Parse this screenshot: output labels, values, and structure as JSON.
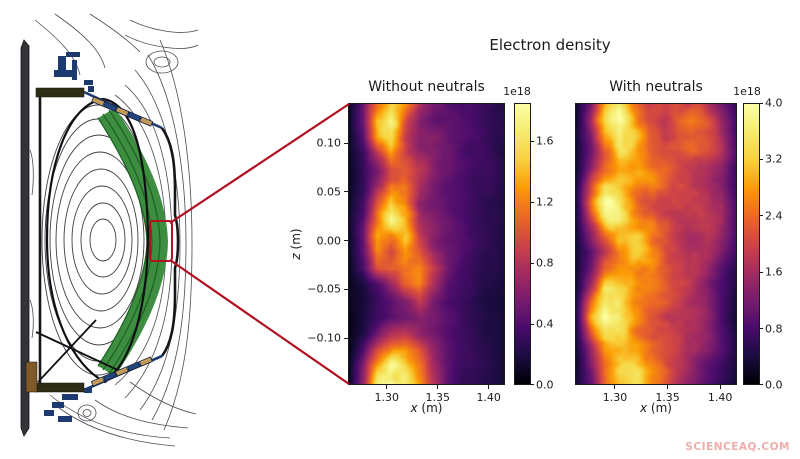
{
  "figure": {
    "title": "Electron density"
  },
  "watermark": {
    "text": "SCIENCEAQ.COM",
    "color": "#eeadad"
  },
  "diagram": {
    "colors": {
      "flux_contours": "#4a4a52",
      "vessel_wall": "#15151a",
      "coils_blue": "#1c3a6e",
      "tiles_tan": "#c49a5a",
      "edge_band_green": "#3e8e41",
      "band_stripe_green": "#1f6322",
      "highlight_red": "#b01020",
      "olive_component": "#2e2e14",
      "brown_component": "#7d5a28"
    }
  },
  "chart_data": [
    {
      "type": "heatmap",
      "title": "Without neutrals",
      "xlabel": "x (m)",
      "xlabel_var": "x",
      "xlabel_unit": " (m)",
      "ylabel": "z (m)",
      "ylabel_var": "z",
      "ylabel_unit": " (m)",
      "xlim": [
        1.262,
        1.416
      ],
      "ylim": [
        -0.148,
        0.141
      ],
      "xticks": {
        "values": [
          1.3,
          1.35,
          1.4
        ],
        "labels": [
          "1.30",
          "1.35",
          "1.40"
        ]
      },
      "yticks": {
        "values": [
          0.1,
          0.05,
          0.0,
          -0.05,
          -0.1
        ],
        "labels": [
          "0.10",
          "0.05",
          "0.00",
          "−0.05",
          "−0.10"
        ]
      },
      "colormap": "inferno",
      "colorbar": {
        "scale_label": "1e18",
        "vmin": 0.0,
        "vmax": 1.85,
        "ticks": {
          "values": [
            1.6,
            1.2,
            0.8,
            0.4,
            0.0
          ],
          "labels": [
            "1.6",
            "1.2",
            "0.8",
            "0.4",
            "0.0"
          ]
        }
      },
      "grid_rows": 18,
      "grid_cols": 12,
      "values": [
        [
          0.1,
          0.5,
          1.3,
          1.5,
          1.1,
          0.7,
          0.5,
          0.45,
          0.4,
          0.35,
          0.3,
          0.25
        ],
        [
          0.1,
          0.5,
          1.4,
          1.6,
          1.0,
          0.6,
          0.5,
          0.5,
          0.45,
          0.4,
          0.3,
          0.25
        ],
        [
          0.1,
          0.4,
          1.2,
          1.5,
          0.9,
          0.6,
          0.6,
          0.55,
          0.5,
          0.4,
          0.3,
          0.25
        ],
        [
          0.1,
          0.3,
          0.8,
          1.2,
          0.9,
          0.7,
          0.6,
          0.5,
          0.4,
          0.35,
          0.3,
          0.2
        ],
        [
          0.1,
          0.3,
          0.6,
          1.0,
          1.0,
          0.8,
          0.6,
          0.45,
          0.35,
          0.3,
          0.3,
          0.2
        ],
        [
          0.1,
          0.3,
          0.7,
          1.2,
          1.1,
          0.7,
          0.5,
          0.4,
          0.35,
          0.3,
          0.3,
          0.2
        ],
        [
          0.1,
          0.35,
          0.9,
          1.4,
          1.1,
          0.6,
          0.5,
          0.45,
          0.4,
          0.3,
          0.25,
          0.2
        ],
        [
          0.15,
          0.4,
          1.1,
          1.7,
          1.3,
          0.8,
          0.6,
          0.5,
          0.4,
          0.3,
          0.25,
          0.2
        ],
        [
          0.15,
          0.5,
          1.4,
          1.2,
          1.5,
          1.0,
          0.7,
          0.5,
          0.4,
          0.3,
          0.25,
          0.2
        ],
        [
          0.15,
          0.5,
          1.3,
          0.9,
          1.4,
          1.1,
          0.7,
          0.5,
          0.4,
          0.3,
          0.25,
          0.2
        ],
        [
          0.1,
          0.4,
          1.0,
          1.2,
          1.2,
          1.2,
          0.8,
          0.5,
          0.35,
          0.3,
          0.25,
          0.2
        ],
        [
          0.1,
          0.2,
          0.4,
          0.7,
          1.0,
          1.1,
          0.7,
          0.4,
          0.3,
          0.3,
          0.25,
          0.2
        ],
        [
          0.1,
          0.15,
          0.3,
          0.4,
          0.6,
          0.8,
          0.5,
          0.35,
          0.3,
          0.25,
          0.2,
          0.15
        ],
        [
          0.05,
          0.15,
          0.3,
          0.4,
          0.5,
          0.6,
          0.5,
          0.4,
          0.3,
          0.25,
          0.2,
          0.15
        ],
        [
          0.05,
          0.2,
          0.5,
          0.8,
          0.8,
          0.6,
          0.5,
          0.4,
          0.3,
          0.25,
          0.2,
          0.15
        ],
        [
          0.05,
          0.4,
          1.0,
          1.3,
          1.2,
          0.9,
          0.6,
          0.4,
          0.3,
          0.25,
          0.2,
          0.15
        ],
        [
          0.1,
          0.6,
          1.4,
          1.7,
          1.5,
          1.1,
          0.7,
          0.45,
          0.3,
          0.25,
          0.2,
          0.15
        ],
        [
          0.1,
          0.7,
          1.6,
          1.8,
          1.6,
          1.2,
          0.8,
          0.5,
          0.3,
          0.25,
          0.2,
          0.15
        ]
      ]
    },
    {
      "type": "heatmap",
      "title": "With neutrals",
      "xlabel": "x (m)",
      "xlabel_var": "x",
      "xlabel_unit": " (m)",
      "xlim": [
        1.262,
        1.416
      ],
      "ylim": [
        -0.148,
        0.141
      ],
      "xticks": {
        "values": [
          1.3,
          1.35,
          1.4
        ],
        "labels": [
          "1.30",
          "1.35",
          "1.40"
        ]
      },
      "colormap": "inferno",
      "colorbar": {
        "scale_label": "1e18",
        "vmin": 0.0,
        "vmax": 4.0,
        "ticks": {
          "values": [
            4.0,
            3.2,
            2.4,
            1.6,
            0.8,
            0.0
          ],
          "labels": [
            "4.0",
            "3.2",
            "2.4",
            "1.6",
            "0.8",
            "0.0"
          ]
        }
      },
      "grid_rows": 18,
      "grid_cols": 12,
      "values": [
        [
          0.3,
          1.2,
          2.8,
          3.2,
          2.5,
          2.0,
          2.2,
          2.4,
          2.2,
          1.8,
          1.2,
          0.6
        ],
        [
          0.3,
          1.5,
          3.4,
          3.9,
          3.0,
          2.2,
          2.0,
          2.4,
          2.6,
          2.2,
          1.4,
          0.7
        ],
        [
          0.3,
          1.4,
          3.2,
          4.0,
          3.4,
          2.4,
          2.0,
          2.2,
          2.4,
          2.2,
          1.6,
          0.8
        ],
        [
          0.3,
          1.2,
          2.6,
          3.6,
          3.2,
          2.6,
          2.2,
          2.0,
          2.2,
          2.0,
          1.6,
          0.8
        ],
        [
          0.3,
          1.4,
          2.8,
          3.0,
          2.8,
          2.6,
          2.4,
          2.2,
          2.0,
          1.8,
          1.4,
          0.7
        ],
        [
          0.4,
          2.0,
          3.6,
          3.2,
          2.6,
          2.4,
          2.4,
          2.2,
          2.0,
          1.8,
          1.4,
          0.7
        ],
        [
          0.4,
          2.4,
          3.9,
          3.4,
          2.8,
          2.4,
          2.2,
          2.2,
          2.0,
          1.8,
          1.5,
          0.8
        ],
        [
          0.4,
          2.0,
          3.4,
          3.6,
          3.0,
          2.6,
          2.2,
          2.0,
          2.0,
          1.8,
          1.5,
          0.8
        ],
        [
          0.3,
          1.4,
          2.6,
          3.2,
          3.2,
          2.8,
          2.4,
          2.0,
          1.8,
          1.8,
          1.4,
          0.8
        ],
        [
          0.3,
          1.0,
          2.0,
          2.8,
          3.0,
          2.8,
          2.4,
          2.2,
          1.8,
          1.6,
          1.2,
          0.7
        ],
        [
          0.3,
          1.2,
          2.4,
          2.6,
          2.8,
          2.6,
          2.4,
          2.2,
          2.0,
          1.6,
          1.0,
          0.6
        ],
        [
          0.3,
          1.6,
          3.0,
          2.8,
          2.6,
          2.6,
          2.4,
          2.2,
          2.0,
          1.6,
          1.0,
          0.5
        ],
        [
          0.4,
          2.2,
          3.7,
          3.2,
          2.6,
          2.4,
          2.4,
          2.2,
          1.8,
          1.5,
          0.9,
          0.4
        ],
        [
          0.4,
          2.6,
          3.9,
          3.4,
          2.8,
          2.4,
          2.2,
          2.0,
          1.8,
          1.4,
          0.8,
          0.3
        ],
        [
          0.4,
          2.0,
          3.2,
          3.0,
          2.8,
          2.6,
          2.2,
          2.0,
          1.6,
          1.3,
          0.8,
          0.4
        ],
        [
          0.3,
          1.4,
          2.6,
          2.8,
          3.0,
          2.8,
          2.4,
          2.0,
          1.6,
          1.2,
          0.8,
          0.4
        ],
        [
          0.3,
          1.2,
          2.4,
          3.0,
          3.2,
          2.8,
          2.4,
          1.8,
          1.4,
          1.0,
          0.7,
          0.4
        ],
        [
          0.3,
          1.0,
          2.2,
          2.8,
          3.0,
          2.6,
          2.2,
          1.6,
          1.2,
          0.9,
          0.6,
          0.3
        ]
      ]
    }
  ]
}
